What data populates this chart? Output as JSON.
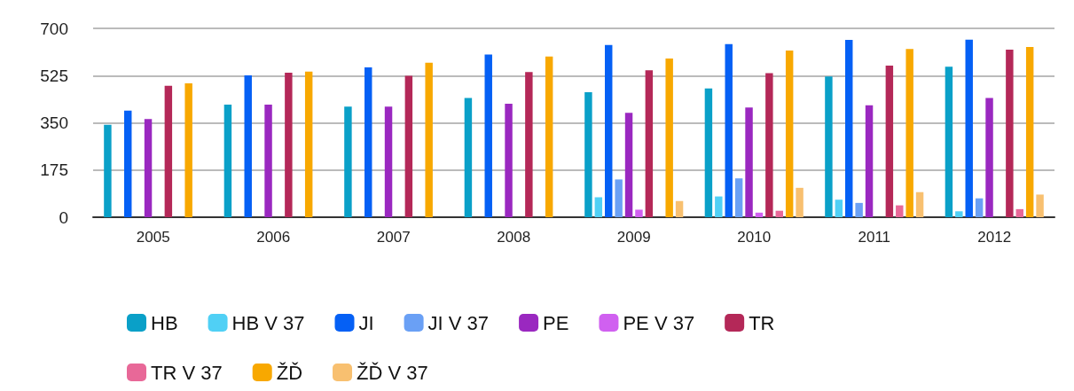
{
  "chart_data": {
    "type": "bar",
    "categories": [
      "2005",
      "2006",
      "2007",
      "2008",
      "2009",
      "2010",
      "2011",
      "2012"
    ],
    "series": [
      {
        "name": "HB",
        "color": "#0aa0c8",
        "values": [
          343,
          417,
          410,
          442,
          463,
          477,
          522,
          558
        ]
      },
      {
        "name": "HB V 37",
        "color": "#50d0f5",
        "values": [
          null,
          null,
          null,
          null,
          74,
          77,
          65,
          22
        ]
      },
      {
        "name": "JI",
        "color": "#0560f5",
        "values": [
          395,
          526,
          555,
          603,
          638,
          642,
          657,
          658
        ]
      },
      {
        "name": "JI V 37",
        "color": "#6aa0f5",
        "values": [
          null,
          null,
          null,
          null,
          140,
          144,
          53,
          70
        ]
      },
      {
        "name": "PE",
        "color": "#9a28c0",
        "values": [
          364,
          417,
          410,
          421,
          387,
          407,
          415,
          442
        ]
      },
      {
        "name": "PE V 37",
        "color": "#d060f0",
        "values": [
          null,
          null,
          null,
          null,
          28,
          17,
          null,
          null
        ]
      },
      {
        "name": "TR",
        "color": "#b42858",
        "values": [
          487,
          536,
          524,
          538,
          545,
          534,
          562,
          621
        ]
      },
      {
        "name": "TR V 37",
        "color": "#e86898",
        "values": [
          null,
          null,
          null,
          null,
          null,
          24,
          44,
          30
        ]
      },
      {
        "name": "ŽĎ",
        "color": "#f8a800",
        "values": [
          496,
          540,
          573,
          596,
          588,
          618,
          624,
          631
        ]
      },
      {
        "name": "ŽĎ V 37",
        "color": "#f8c070",
        "values": [
          null,
          null,
          null,
          null,
          60,
          109,
          93,
          84
        ]
      }
    ],
    "ylim": [
      0,
      700
    ],
    "yticks": [
      0,
      175,
      350,
      525,
      700
    ],
    "grid": "y",
    "legend": "bottom"
  }
}
